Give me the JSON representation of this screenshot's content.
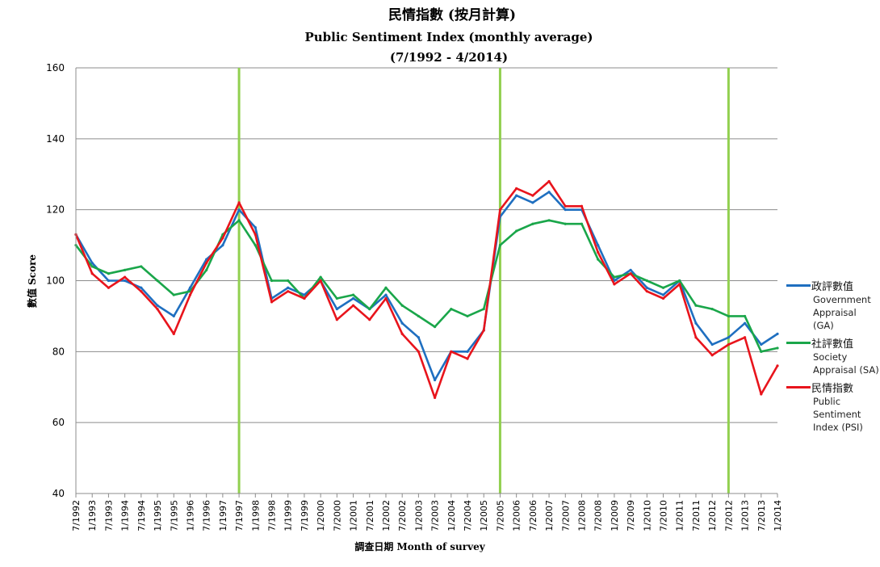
{
  "chart_data": {
    "type": "line",
    "title": "民情指數 (按月計算)",
    "subtitle": "Public Sentiment Index (monthly average)",
    "period": "(7/1992 - 4/2014)",
    "ylabel": "數值 Score",
    "xlabel": "調查日期 Month of survey",
    "ylim": [
      40,
      160
    ],
    "y_ticks": [
      40,
      60,
      80,
      100,
      120,
      140,
      160
    ],
    "x_ticks": [
      "7/1992",
      "1/1993",
      "7/1993",
      "1/1994",
      "7/1994",
      "1/1995",
      "7/1995",
      "1/1996",
      "7/1996",
      "1/1997",
      "7/1997",
      "1/1998",
      "7/1998",
      "1/1999",
      "7/1999",
      "1/2000",
      "7/2000",
      "1/2001",
      "7/2001",
      "1/2002",
      "7/2002",
      "1/2003",
      "7/2003",
      "1/2004",
      "7/2004",
      "1/2005",
      "7/2005",
      "1/2006",
      "7/2006",
      "1/2007",
      "7/2007",
      "1/2008",
      "7/2008",
      "1/2009",
      "7/2009",
      "1/2010",
      "7/2010",
      "1/2011",
      "7/2011",
      "1/2012",
      "7/2012",
      "1/2013",
      "7/2013",
      "1/2014"
    ],
    "grid": "horizontal",
    "legend_position": "right",
    "vertical_markers": [
      "7/1997",
      "7/2005",
      "7/2012"
    ],
    "marker_color": "#92d050",
    "series": [
      {
        "name": "政評數值",
        "name_en": "Government Appraisal (GA)",
        "color": "#1f6fc0",
        "points": [
          [
            "7/1992",
            113
          ],
          [
            "1/1993",
            105
          ],
          [
            "7/1993",
            100
          ],
          [
            "1/1994",
            100
          ],
          [
            "7/1994",
            98
          ],
          [
            "1/1995",
            93
          ],
          [
            "7/1995",
            90
          ],
          [
            "1/1996",
            98
          ],
          [
            "7/1996",
            106
          ],
          [
            "1/1997",
            110
          ],
          [
            "7/1997",
            120
          ],
          [
            "1/1998",
            115
          ],
          [
            "7/1998",
            95
          ],
          [
            "1/1999",
            98
          ],
          [
            "7/1999",
            96
          ],
          [
            "1/2000",
            100
          ],
          [
            "7/2000",
            92
          ],
          [
            "1/2001",
            95
          ],
          [
            "7/2001",
            92
          ],
          [
            "1/2002",
            96
          ],
          [
            "7/2002",
            88
          ],
          [
            "1/2003",
            84
          ],
          [
            "7/2003",
            72
          ],
          [
            "1/2004",
            80
          ],
          [
            "7/2004",
            80
          ],
          [
            "1/2005",
            86
          ],
          [
            "7/2005",
            118
          ],
          [
            "1/2006",
            124
          ],
          [
            "7/2006",
            122
          ],
          [
            "1/2007",
            125
          ],
          [
            "7/2007",
            120
          ],
          [
            "1/2008",
            120
          ],
          [
            "7/2008",
            110
          ],
          [
            "1/2009",
            100
          ],
          [
            "7/2009",
            103
          ],
          [
            "1/2010",
            98
          ],
          [
            "7/2010",
            96
          ],
          [
            "1/2011",
            100
          ],
          [
            "7/2011",
            88
          ],
          [
            "1/2012",
            82
          ],
          [
            "7/2012",
            84
          ],
          [
            "1/2013",
            88
          ],
          [
            "7/2013",
            82
          ],
          [
            "1/2014",
            85
          ]
        ]
      },
      {
        "name": "社評數值",
        "name_en": "Society Appraisal (SA)",
        "color": "#1aa64a",
        "points": [
          [
            "7/1992",
            110
          ],
          [
            "1/1993",
            104
          ],
          [
            "7/1993",
            102
          ],
          [
            "1/1994",
            103
          ],
          [
            "7/1994",
            104
          ],
          [
            "1/1995",
            100
          ],
          [
            "7/1995",
            96
          ],
          [
            "1/1996",
            97
          ],
          [
            "7/1996",
            103
          ],
          [
            "1/1997",
            113
          ],
          [
            "7/1997",
            117
          ],
          [
            "1/1998",
            110
          ],
          [
            "7/1998",
            100
          ],
          [
            "1/1999",
            100
          ],
          [
            "7/1999",
            95
          ],
          [
            "1/2000",
            101
          ],
          [
            "7/2000",
            95
          ],
          [
            "1/2001",
            96
          ],
          [
            "7/2001",
            92
          ],
          [
            "1/2002",
            98
          ],
          [
            "7/2002",
            93
          ],
          [
            "1/2003",
            90
          ],
          [
            "7/2003",
            87
          ],
          [
            "1/2004",
            92
          ],
          [
            "7/2004",
            90
          ],
          [
            "1/2005",
            92
          ],
          [
            "7/2005",
            110
          ],
          [
            "1/2006",
            114
          ],
          [
            "7/2006",
            116
          ],
          [
            "1/2007",
            117
          ],
          [
            "7/2007",
            116
          ],
          [
            "1/2008",
            116
          ],
          [
            "7/2008",
            106
          ],
          [
            "1/2009",
            101
          ],
          [
            "7/2009",
            102
          ],
          [
            "1/2010",
            100
          ],
          [
            "7/2010",
            98
          ],
          [
            "1/2011",
            100
          ],
          [
            "7/2011",
            93
          ],
          [
            "1/2012",
            92
          ],
          [
            "7/2012",
            90
          ],
          [
            "1/2013",
            90
          ],
          [
            "7/2013",
            80
          ],
          [
            "1/2014",
            81
          ]
        ]
      },
      {
        "name": "民情指數",
        "name_en": "Public Sentiment Index (PSI)",
        "color": "#e8141c",
        "points": [
          [
            "7/1992",
            113
          ],
          [
            "1/1993",
            102
          ],
          [
            "7/1993",
            98
          ],
          [
            "1/1994",
            101
          ],
          [
            "7/1994",
            97
          ],
          [
            "1/1995",
            92
          ],
          [
            "7/1995",
            85
          ],
          [
            "1/1996",
            96
          ],
          [
            "7/1996",
            105
          ],
          [
            "1/1997",
            112
          ],
          [
            "7/1997",
            122
          ],
          [
            "1/1998",
            113
          ],
          [
            "7/1998",
            94
          ],
          [
            "1/1999",
            97
          ],
          [
            "7/1999",
            95
          ],
          [
            "1/2000",
            100
          ],
          [
            "7/2000",
            89
          ],
          [
            "1/2001",
            93
          ],
          [
            "7/2001",
            89
          ],
          [
            "1/2002",
            95
          ],
          [
            "7/2002",
            85
          ],
          [
            "1/2003",
            80
          ],
          [
            "7/2003",
            67
          ],
          [
            "1/2004",
            80
          ],
          [
            "7/2004",
            78
          ],
          [
            "1/2005",
            86
          ],
          [
            "7/2005",
            120
          ],
          [
            "1/2006",
            126
          ],
          [
            "7/2006",
            124
          ],
          [
            "1/2007",
            128
          ],
          [
            "7/2007",
            121
          ],
          [
            "1/2008",
            121
          ],
          [
            "7/2008",
            108
          ],
          [
            "1/2009",
            99
          ],
          [
            "7/2009",
            102
          ],
          [
            "1/2010",
            97
          ],
          [
            "7/2010",
            95
          ],
          [
            "1/2011",
            99
          ],
          [
            "7/2011",
            84
          ],
          [
            "1/2012",
            79
          ],
          [
            "7/2012",
            82
          ],
          [
            "1/2013",
            84
          ],
          [
            "7/2013",
            68
          ],
          [
            "1/2014",
            76
          ]
        ]
      }
    ]
  }
}
